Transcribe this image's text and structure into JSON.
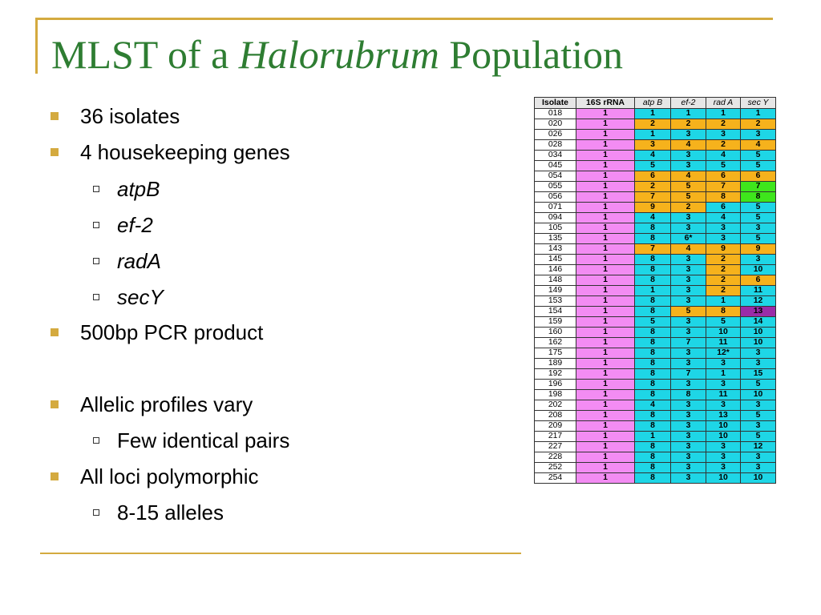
{
  "slide": {
    "title_prefix": "MLST of a ",
    "title_italic": "Halorubrum",
    "title_suffix": " Population"
  },
  "bullets": [
    {
      "level": 1,
      "text": "36 isolates"
    },
    {
      "level": 1,
      "text": "4 housekeeping genes"
    },
    {
      "level": 2,
      "text": "atpB",
      "italic": true
    },
    {
      "level": 2,
      "text": "ef-2",
      "italic": true
    },
    {
      "level": 2,
      "text": "radA",
      "italic": true
    },
    {
      "level": 2,
      "text": "secY",
      "italic": true
    },
    {
      "level": 1,
      "text": "500bp PCR product"
    },
    {
      "level": 1,
      "text": "Allelic profiles vary"
    },
    {
      "level": 2,
      "text": "Few identical pairs"
    },
    {
      "level": 1,
      "text": "All loci polymorphic"
    },
    {
      "level": 2,
      "text": "8-15 alleles"
    }
  ],
  "colors": {
    "accent_gold": "#d4aa3f",
    "title_green": "#2e7d32",
    "rrna_pink": "#f38cf3",
    "allele_cyan": "#1ed6e6",
    "allele_orange": "#f6b21c",
    "allele_green": "#3ee61c",
    "allele_purple": "#9a2ca8"
  },
  "table": {
    "headers": [
      "Isolate",
      "16S rRNA",
      "atp B",
      "ef-2",
      "rad A",
      "sec Y"
    ],
    "rows": [
      [
        "018",
        "1",
        "1",
        "1",
        "1",
        "1"
      ],
      [
        "020",
        "1",
        "2",
        "2",
        "2",
        "2"
      ],
      [
        "026",
        "1",
        "1",
        "3",
        "3",
        "3"
      ],
      [
        "028",
        "1",
        "3",
        "4",
        "2",
        "4"
      ],
      [
        "034",
        "1",
        "4",
        "3",
        "4",
        "5"
      ],
      [
        "045",
        "1",
        "5",
        "3",
        "5",
        "5"
      ],
      [
        "054",
        "1",
        "6",
        "4",
        "6",
        "6"
      ],
      [
        "055",
        "1",
        "2",
        "5",
        "7",
        "7"
      ],
      [
        "056",
        "1",
        "7",
        "5",
        "8",
        "8"
      ],
      [
        "071",
        "1",
        "9",
        "2",
        "6",
        "5"
      ],
      [
        "094",
        "1",
        "4",
        "3",
        "4",
        "5"
      ],
      [
        "105",
        "1",
        "8",
        "3",
        "3",
        "3"
      ],
      [
        "135",
        "1",
        "8",
        "6*",
        "3",
        "5"
      ],
      [
        "143",
        "1",
        "7",
        "4",
        "9",
        "9"
      ],
      [
        "145",
        "1",
        "8",
        "3",
        "2",
        "3"
      ],
      [
        "146",
        "1",
        "8",
        "3",
        "2",
        "10"
      ],
      [
        "148",
        "1",
        "8",
        "3",
        "2",
        "6"
      ],
      [
        "149",
        "1",
        "1",
        "3",
        "2",
        "11"
      ],
      [
        "153",
        "1",
        "8",
        "3",
        "1",
        "12"
      ],
      [
        "154",
        "1",
        "8",
        "5",
        "8",
        "13"
      ],
      [
        "159",
        "1",
        "5",
        "3",
        "5",
        "14"
      ],
      [
        "160",
        "1",
        "8",
        "3",
        "10",
        "10"
      ],
      [
        "162",
        "1",
        "8",
        "7",
        "11",
        "10"
      ],
      [
        "175",
        "1",
        "8",
        "3",
        "12*",
        "3"
      ],
      [
        "189",
        "1",
        "8",
        "3",
        "3",
        "3"
      ],
      [
        "192",
        "1",
        "8",
        "7",
        "1",
        "15"
      ],
      [
        "196",
        "1",
        "8",
        "3",
        "3",
        "5"
      ],
      [
        "198",
        "1",
        "8",
        "8",
        "11",
        "10"
      ],
      [
        "202",
        "1",
        "4",
        "3",
        "3",
        "3"
      ],
      [
        "208",
        "1",
        "8",
        "3",
        "13",
        "5"
      ],
      [
        "209",
        "1",
        "8",
        "3",
        "10",
        "3"
      ],
      [
        "217",
        "1",
        "1",
        "3",
        "10",
        "5"
      ],
      [
        "227",
        "1",
        "8",
        "3",
        "3",
        "12"
      ],
      [
        "228",
        "1",
        "8",
        "3",
        "3",
        "3"
      ],
      [
        "252",
        "1",
        "8",
        "3",
        "3",
        "3"
      ],
      [
        "254",
        "1",
        "8",
        "3",
        "10",
        "10"
      ]
    ],
    "cell_colors": [
      [
        "pink",
        "cyan",
        "cyan",
        "cyan",
        "cyan"
      ],
      [
        "pink",
        "orange",
        "orange",
        "orange",
        "orange"
      ],
      [
        "pink",
        "cyan",
        "cyan",
        "cyan",
        "cyan"
      ],
      [
        "pink",
        "orange",
        "orange",
        "orange",
        "orange"
      ],
      [
        "pink",
        "cyan",
        "cyan",
        "cyan",
        "cyan"
      ],
      [
        "pink",
        "cyan",
        "cyan",
        "cyan",
        "cyan"
      ],
      [
        "pink",
        "orange",
        "orange",
        "orange",
        "orange"
      ],
      [
        "pink",
        "orange",
        "orange",
        "orange",
        "green"
      ],
      [
        "pink",
        "orange",
        "orange",
        "orange",
        "green"
      ],
      [
        "pink",
        "orange",
        "orange",
        "cyan",
        "cyan"
      ],
      [
        "pink",
        "cyan",
        "cyan",
        "cyan",
        "cyan"
      ],
      [
        "pink",
        "cyan",
        "cyan",
        "cyan",
        "cyan"
      ],
      [
        "pink",
        "cyan",
        "cyan",
        "cyan",
        "cyan"
      ],
      [
        "pink",
        "orange",
        "orange",
        "orange",
        "orange"
      ],
      [
        "pink",
        "cyan",
        "cyan",
        "orange",
        "cyan"
      ],
      [
        "pink",
        "cyan",
        "cyan",
        "orange",
        "cyan"
      ],
      [
        "pink",
        "cyan",
        "cyan",
        "orange",
        "orange"
      ],
      [
        "pink",
        "cyan",
        "cyan",
        "orange",
        "cyan"
      ],
      [
        "pink",
        "cyan",
        "cyan",
        "cyan",
        "cyan"
      ],
      [
        "pink",
        "cyan",
        "orange",
        "orange",
        "purple"
      ],
      [
        "pink",
        "cyan",
        "cyan",
        "cyan",
        "cyan"
      ],
      [
        "pink",
        "cyan",
        "cyan",
        "cyan",
        "cyan"
      ],
      [
        "pink",
        "cyan",
        "cyan",
        "cyan",
        "cyan"
      ],
      [
        "pink",
        "cyan",
        "cyan",
        "cyan",
        "cyan"
      ],
      [
        "pink",
        "cyan",
        "cyan",
        "cyan",
        "cyan"
      ],
      [
        "pink",
        "cyan",
        "cyan",
        "cyan",
        "cyan"
      ],
      [
        "pink",
        "cyan",
        "cyan",
        "cyan",
        "cyan"
      ],
      [
        "pink",
        "cyan",
        "cyan",
        "cyan",
        "cyan"
      ],
      [
        "pink",
        "cyan",
        "cyan",
        "cyan",
        "cyan"
      ],
      [
        "pink",
        "cyan",
        "cyan",
        "cyan",
        "cyan"
      ],
      [
        "pink",
        "cyan",
        "cyan",
        "cyan",
        "cyan"
      ],
      [
        "pink",
        "cyan",
        "cyan",
        "cyan",
        "cyan"
      ],
      [
        "pink",
        "cyan",
        "cyan",
        "cyan",
        "cyan"
      ],
      [
        "pink",
        "cyan",
        "cyan",
        "cyan",
        "cyan"
      ],
      [
        "pink",
        "cyan",
        "cyan",
        "cyan",
        "cyan"
      ],
      [
        "pink",
        "cyan",
        "cyan",
        "cyan",
        "cyan"
      ]
    ]
  }
}
